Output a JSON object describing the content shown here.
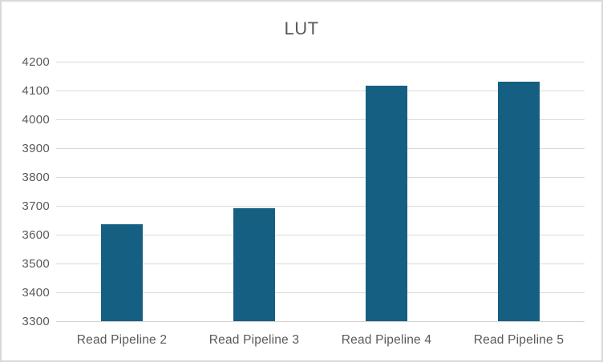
{
  "chart_data": {
    "type": "bar",
    "title": "LUT",
    "categories": [
      "Read Pipeline 2",
      "Read Pipeline 3",
      "Read Pipeline 4",
      "Read Pipeline 5"
    ],
    "values": [
      3636,
      3693,
      4116,
      4130
    ],
    "ylim": [
      3300,
      4200
    ],
    "yticks": [
      3300,
      3400,
      3500,
      3600,
      3700,
      3800,
      3900,
      4000,
      4100,
      4200
    ],
    "xlabel": "",
    "ylabel": "",
    "grid": true,
    "legend_position": "none",
    "bar_color": "#156082",
    "gridline_color": "#D9D9D9",
    "axis_line_color": "#D3D3D3",
    "text_color": "#595959",
    "border_color": "#D9D9D9",
    "background_color": "#FFFFFF"
  }
}
